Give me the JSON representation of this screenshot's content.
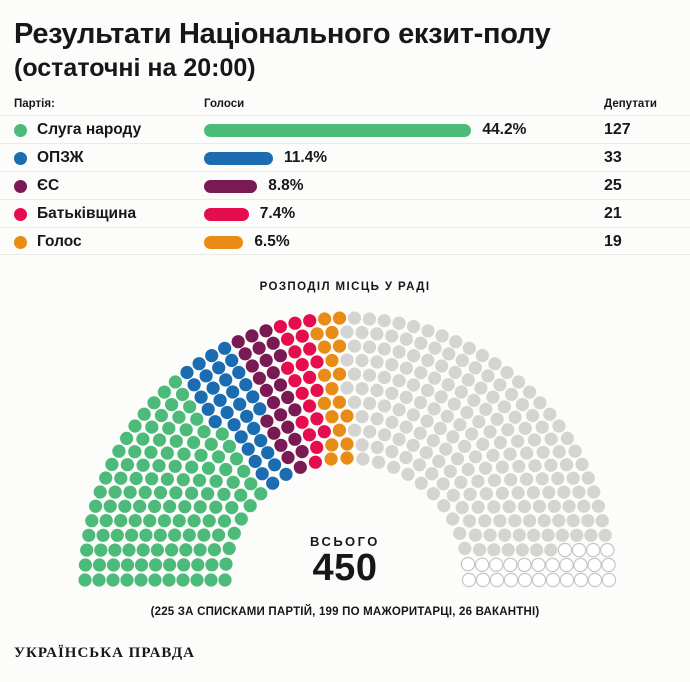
{
  "header": {
    "title_line1": "Результати Національного екзит-полу",
    "title_line2": "(остаточні на 20:00)"
  },
  "table": {
    "headers": {
      "party": "Партія:",
      "votes": "Голоси",
      "deputies": "Депутати"
    },
    "rows": [
      {
        "party": "Слуга народу",
        "percent": 44.2,
        "percent_label": "44.2%",
        "deputies": "127",
        "color": "#4cba78"
      },
      {
        "party": "ОПЗЖ",
        "percent": 11.4,
        "percent_label": "11.4%",
        "deputies": "33",
        "color": "#1b6cb0"
      },
      {
        "party": "ЄС",
        "percent": 8.8,
        "percent_label": "8.8%",
        "deputies": "25",
        "color": "#7a1a55"
      },
      {
        "party": "Батьківщина",
        "percent": 7.4,
        "percent_label": "7.4%",
        "deputies": "21",
        "color": "#e60d4e"
      },
      {
        "party": "Голос",
        "percent": 6.5,
        "percent_label": "6.5%",
        "deputies": "19",
        "color": "#e98c15"
      }
    ]
  },
  "chart_data": [
    {
      "type": "bar",
      "title": "Результати Національного екзит-полу (остаточні на 20:00)",
      "categories": [
        "Слуга народу",
        "ОПЗЖ",
        "ЄС",
        "Батьківщина",
        "Голос"
      ],
      "series": [
        {
          "name": "Голоси (%)",
          "values": [
            44.2,
            11.4,
            8.8,
            7.4,
            6.5
          ]
        },
        {
          "name": "Депутати",
          "values": [
            127,
            33,
            25,
            21,
            19
          ]
        }
      ],
      "colors": [
        "#4cba78",
        "#1b6cb0",
        "#7a1a55",
        "#e60d4e",
        "#e98c15"
      ],
      "xlabel": "",
      "ylabel": "",
      "xlim": [
        0,
        100
      ],
      "grid": false,
      "legend_position": "none"
    },
    {
      "type": "parliament-hemicycle",
      "title": "РОЗПОДІЛ МІСЦЬ У РАДІ",
      "total_seats": 450,
      "center_label": "ВСЬОГО",
      "center_value": "450",
      "footnote": "(225 ЗА СПИСКАМИ ПАРТІЙ, 199 ПО МАЖОРИТАРЦІ, 26 ВАКАНТНІ)",
      "segments": [
        {
          "name": "Слуга народу",
          "seats": 127,
          "color": "#4cba78"
        },
        {
          "name": "ОПЗЖ",
          "seats": 33,
          "color": "#1b6cb0"
        },
        {
          "name": "ЄС",
          "seats": 25,
          "color": "#7a1a55"
        },
        {
          "name": "Батьківщина",
          "seats": 21,
          "color": "#e60d4e"
        },
        {
          "name": "Голос",
          "seats": 19,
          "color": "#e98c15"
        },
        {
          "name": "Мажоритарка",
          "seats": 199,
          "color": "#d4d4d2"
        },
        {
          "name": "Вакантні",
          "seats": 26,
          "color": "#ffffff",
          "border": "#c6c6c4"
        }
      ]
    }
  ],
  "footer": {
    "logo": "УКРАЇНСЬКА ПРАВДА"
  }
}
